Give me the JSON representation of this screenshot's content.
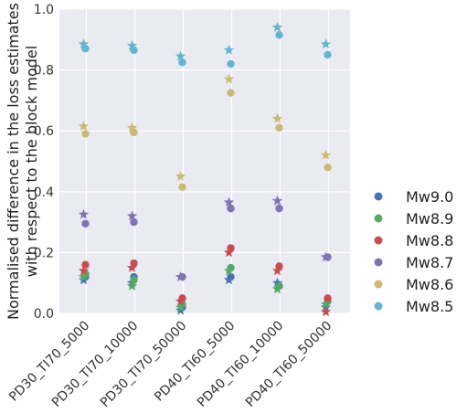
{
  "chart_data": {
    "type": "scatter",
    "title": "",
    "xlabel": "",
    "ylabel": [
      "Normalised difference in the loss estimates",
      "with respect to the block model"
    ],
    "categories": [
      "PD30_TI70_5000",
      "PD30_TI70_10000",
      "PD30_TI70_50000",
      "PD40_TI60_5000",
      "PD40_TI60_10000",
      "PD40_TI60_50000"
    ],
    "ylim": [
      0,
      1.0
    ],
    "yticks": [
      "0.0",
      "0.2",
      "0.4",
      "0.6",
      "0.8",
      "1.0"
    ],
    "grid": true,
    "legend_position": "right",
    "series": [
      {
        "name": "Mw9.0",
        "color": "#4c72b0",
        "circle_values": [
          0.12,
          0.12,
          0.02,
          0.12,
          0.09,
          0.04
        ],
        "star_values": [
          0.11,
          0.1,
          0.01,
          0.11,
          0.1,
          0.02
        ]
      },
      {
        "name": "Mw8.9",
        "color": "#55a868",
        "circle_values": [
          0.13,
          0.11,
          0.03,
          0.15,
          0.09,
          0.04
        ],
        "star_values": [
          0.12,
          0.09,
          0.02,
          0.14,
          0.08,
          0.03
        ]
      },
      {
        "name": "Mw8.8",
        "color": "#c44e52",
        "circle_values": [
          0.16,
          0.165,
          0.05,
          0.215,
          0.155,
          0.05
        ],
        "star_values": [
          0.14,
          0.15,
          0.04,
          0.2,
          0.14,
          0.005
        ]
      },
      {
        "name": "Mw8.7",
        "color": "#8172b2",
        "circle_values": [
          0.295,
          0.3,
          0.12,
          0.345,
          0.345,
          0.185
        ],
        "star_values": [
          0.325,
          0.32,
          0.12,
          0.365,
          0.37,
          0.185
        ]
      },
      {
        "name": "Mw8.6",
        "color": "#ccb974",
        "circle_values": [
          0.59,
          0.595,
          0.415,
          0.725,
          0.61,
          0.48
        ],
        "star_values": [
          0.615,
          0.61,
          0.45,
          0.77,
          0.64,
          0.52
        ]
      },
      {
        "name": "Mw8.5",
        "color": "#64b5cd",
        "circle_values": [
          0.87,
          0.865,
          0.825,
          0.82,
          0.915,
          0.85
        ],
        "star_values": [
          0.885,
          0.88,
          0.845,
          0.865,
          0.94,
          0.885
        ]
      }
    ]
  }
}
